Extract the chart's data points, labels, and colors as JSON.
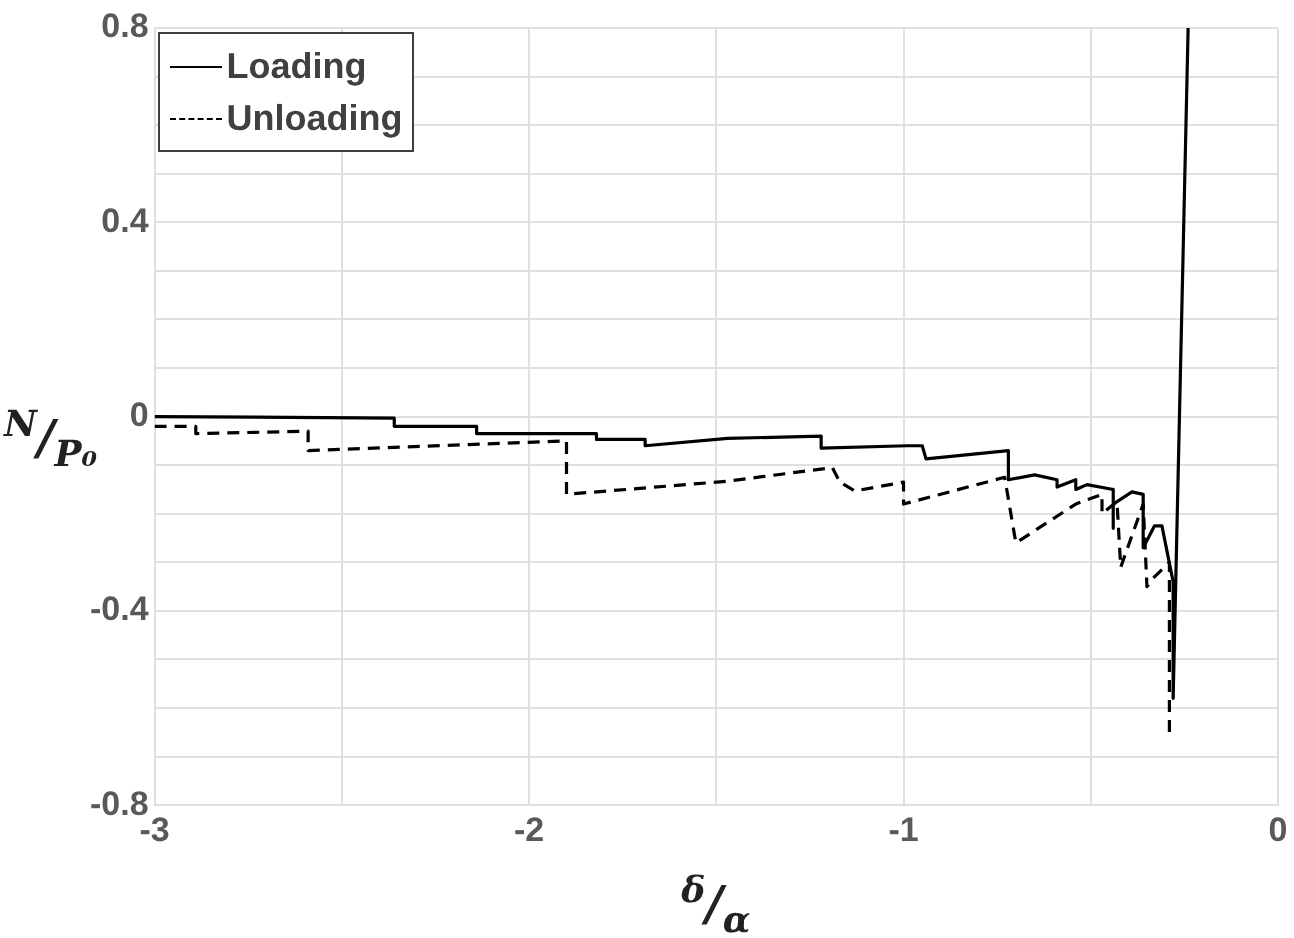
{
  "chart_data": {
    "type": "line",
    "xlabel": "$^{δ}$/$_{α}$",
    "ylabel": "$^{N}$/$_{P₀}$",
    "xlim": [
      -3,
      0
    ],
    "ylim": [
      -0.8,
      0.8
    ],
    "xticks": [
      -3,
      {
        "value": -2.5,
        "label": null
      },
      -2,
      {
        "value": -1.5,
        "label": null
      },
      -1,
      {
        "value": -0.5,
        "label": null
      },
      0
    ],
    "yticks": [
      -0.8,
      {
        "value": -0.7,
        "label": null
      },
      {
        "value": -0.6,
        "label": null
      },
      {
        "value": -0.5,
        "label": null
      },
      -0.4,
      {
        "value": -0.3,
        "label": null
      },
      {
        "value": -0.2,
        "label": null
      },
      {
        "value": -0.1,
        "label": null
      },
      0,
      {
        "value": 0.1,
        "label": null
      },
      {
        "value": 0.2,
        "label": null
      },
      {
        "value": 0.3,
        "label": null
      },
      0.4,
      {
        "value": 0.5,
        "label": null
      },
      {
        "value": 0.6,
        "label": null
      },
      {
        "value": 0.7,
        "label": null
      },
      0.8
    ],
    "grid": true,
    "legend": "top left",
    "marker": "none",
    "series": [
      {
        "name": "Loading",
        "color": "#000000",
        "line_style": "solid",
        "x": [
          -3,
          -2.36,
          -2.36,
          -2.14,
          -2.14,
          -1.82,
          -1.82,
          -1.69,
          -1.69,
          -1.47,
          -1.22,
          -1.22,
          -0.99,
          -0.95,
          -0.94,
          -0.72,
          -0.72,
          -0.65,
          -0.59,
          -0.59,
          -0.54,
          -0.54,
          -0.51,
          -0.44,
          -0.44,
          -0.44,
          -0.39,
          -0.36,
          -0.36,
          -0.33,
          -0.31,
          -0.28,
          -0.28,
          -0.24
        ],
        "values": [
          0,
          -0.003,
          -0.02,
          -0.02,
          -0.035,
          -0.035,
          -0.047,
          -0.047,
          -0.06,
          -0.045,
          -0.04,
          -0.065,
          -0.06,
          -0.06,
          -0.087,
          -0.07,
          -0.13,
          -0.12,
          -0.13,
          -0.145,
          -0.13,
          -0.15,
          -0.14,
          -0.15,
          -0.23,
          -0.18,
          -0.155,
          -0.16,
          -0.27,
          -0.225,
          -0.225,
          -0.34,
          -0.58,
          0.8
        ]
      },
      {
        "name": "Unloading",
        "color": "#000000",
        "line_style": "dashed",
        "x": [
          -3,
          -2.89,
          -2.89,
          -2.59,
          -2.59,
          -1.9,
          -1.9,
          -1.47,
          -1.19,
          -1.17,
          -1.13,
          -1.0,
          -1.0,
          -0.73,
          -0.7,
          -0.54,
          -0.47,
          -0.47,
          -0.43,
          -0.42,
          -0.36,
          -0.35,
          -0.33,
          -0.29,
          -0.29
        ],
        "values": [
          -0.02,
          -0.02,
          -0.035,
          -0.03,
          -0.07,
          -0.05,
          -0.16,
          -0.133,
          -0.105,
          -0.135,
          -0.153,
          -0.135,
          -0.18,
          -0.125,
          -0.26,
          -0.18,
          -0.16,
          -0.2,
          -0.175,
          -0.31,
          -0.18,
          -0.35,
          -0.33,
          -0.3,
          -0.66
        ]
      }
    ]
  }
}
